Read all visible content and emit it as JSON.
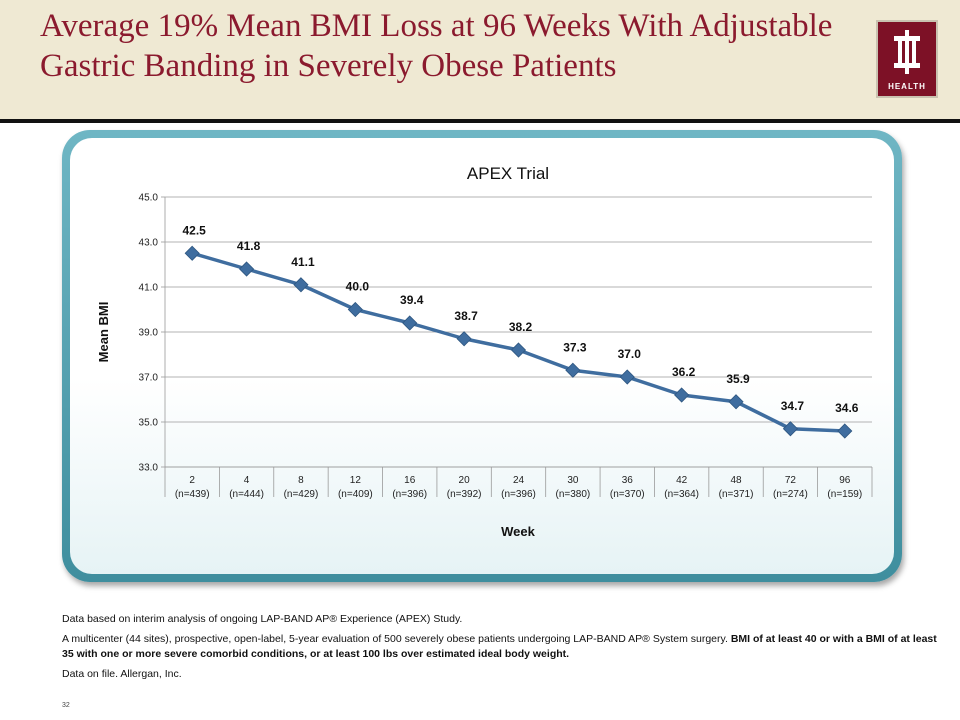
{
  "slide": {
    "title": "Average 19% Mean BMI Loss at 96 Weeks With Adjustable Gastric Banding in Severely Obese Patients",
    "logo_text": "HEALTH",
    "slide_number": "32"
  },
  "notes": {
    "line1": "Data based on interim analysis of ongoing LAP-BAND AP® Experience (APEX) Study.",
    "line2_plain": "A multicenter (44 sites), prospective, open-label, 5-year evaluation of 500 severely obese patients undergoing LAP-BAND AP® System surgery. ",
    "line2_bold": "BMI of at least 40 or with a BMI of at least 35 with one or more severe comorbid conditions, or at least 100 lbs over estimated ideal body weight.",
    "line3": "Data on file. Allergan, Inc."
  },
  "chart_data": {
    "type": "line",
    "title": "APEX Trial",
    "xlabel": "Week",
    "ylabel": "Mean BMI",
    "categories": [
      "2",
      "4",
      "8",
      "12",
      "16",
      "20",
      "24",
      "30",
      "36",
      "42",
      "48",
      "72",
      "96"
    ],
    "category_sublabels": [
      "(n=439)",
      "(n=444)",
      "(n=429)",
      "(n=409)",
      "(n=396)",
      "(n=392)",
      "(n=396)",
      "(n=380)",
      "(n=370)",
      "(n=364)",
      "(n=371)",
      "(n=274)",
      "(n=159)"
    ],
    "values": [
      42.5,
      41.8,
      41.1,
      40.0,
      39.4,
      38.7,
      38.2,
      37.3,
      37.0,
      36.2,
      35.9,
      34.7,
      34.6
    ],
    "value_labels": [
      "42.5",
      "41.8",
      "41.1",
      "40.0",
      "39.4",
      "38.7",
      "38.2",
      "37.3",
      "37.0",
      "36.2",
      "35.9",
      "34.7",
      "34.6"
    ],
    "ylim": [
      33.0,
      45.0
    ],
    "yticks": [
      "33.0",
      "35.0",
      "37.0",
      "39.0",
      "41.0",
      "43.0",
      "45.0"
    ],
    "grid": true,
    "legend": false,
    "series_color": "#3f6d9f",
    "grid_color": "#9a9a9a"
  }
}
